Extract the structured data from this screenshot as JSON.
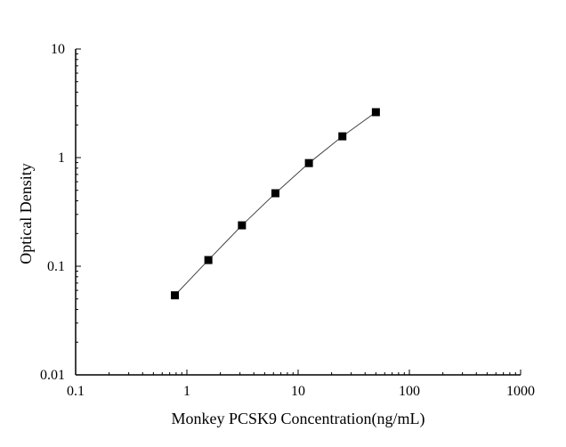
{
  "chart_data": {
    "type": "line",
    "title": "",
    "xlabel": "Monkey PCSK9 Concentration(ng/mL)",
    "ylabel": "Optical Density",
    "x_scale": "log",
    "y_scale": "log",
    "xlim": [
      0.1,
      1000
    ],
    "ylim": [
      0.01,
      10
    ],
    "x_ticks": [
      "0.1",
      "1",
      "10",
      "100",
      "1000"
    ],
    "y_ticks": [
      "0.01",
      "0.1",
      "1",
      "10"
    ],
    "grid": false,
    "marker": "square",
    "color": "#000000",
    "series": [
      {
        "x": [
          0.78,
          1.56,
          3.125,
          6.25,
          12.5,
          25,
          50
        ],
        "y": [
          0.054,
          0.114,
          0.238,
          0.47,
          0.89,
          1.57,
          2.62
        ]
      }
    ]
  }
}
